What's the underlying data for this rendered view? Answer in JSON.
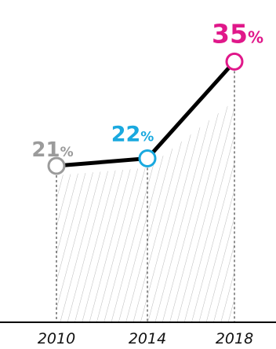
{
  "chart_data": {
    "type": "line",
    "title": "",
    "xlabel": "",
    "ylabel": "",
    "x": [
      "2010",
      "2014",
      "2018"
    ],
    "values": [
      21,
      22,
      35
    ],
    "labels": [
      "21",
      "22",
      "35"
    ],
    "unit": "%",
    "ylim": [
      0,
      40
    ],
    "grid": false,
    "point_colors": [
      "#9b9b9b",
      "#1aa9df",
      "#e0188a"
    ],
    "line_color": "#000000",
    "hatch_color": "#a8a8a8"
  }
}
